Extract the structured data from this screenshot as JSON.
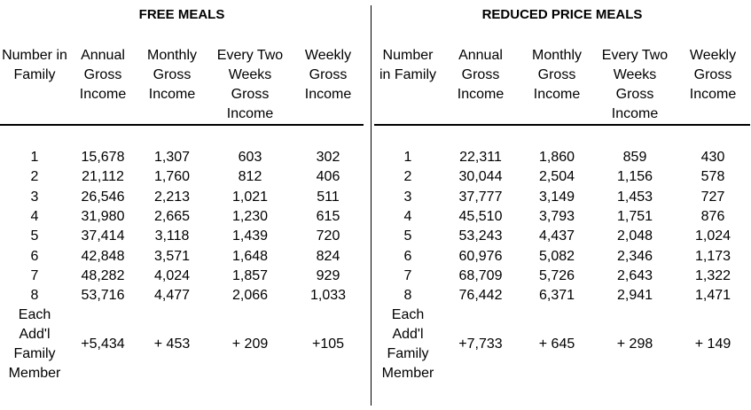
{
  "sections": [
    {
      "title": "FREE MEALS",
      "headers": [
        "Number in Family",
        "Annual Gross Income",
        "Monthly Gross Income",
        "Every Two Weeks Gross Income",
        "Weekly Gross Income"
      ],
      "rows": [
        [
          "1",
          "15,678",
          "1,307",
          "603",
          "302"
        ],
        [
          "2",
          "21,112",
          "1,760",
          "812",
          "406"
        ],
        [
          "3",
          "26,546",
          "2,213",
          "1,021",
          "511"
        ],
        [
          "4",
          "31,980",
          "2,665",
          "1,230",
          "615"
        ],
        [
          "5",
          "37,414",
          "3,118",
          "1,439",
          "720"
        ],
        [
          "6",
          "42,848",
          "3,571",
          "1,648",
          "824"
        ],
        [
          "7",
          "48,282",
          "4,024",
          "1,857",
          "929"
        ],
        [
          "8",
          "53,716",
          "4,477",
          "2,066",
          "1,033"
        ],
        [
          "Each Add'l Family Member",
          "+5,434",
          "+ 453",
          "+ 209",
          "+105"
        ]
      ]
    },
    {
      "title": "REDUCED PRICE MEALS",
      "headers": [
        "Number in Family",
        "Annual Gross Income",
        "Monthly Gross Income",
        "Every Two Weeks Gross Income",
        "Weekly Gross Income"
      ],
      "rows": [
        [
          "1",
          "22,311",
          "1,860",
          "859",
          "430"
        ],
        [
          "2",
          "30,044",
          "2,504",
          "1,156",
          "578"
        ],
        [
          "3",
          "37,777",
          "3,149",
          "1,453",
          "727"
        ],
        [
          "4",
          "45,510",
          "3,793",
          "1,751",
          "876"
        ],
        [
          "5",
          "53,243",
          "4,437",
          "2,048",
          "1,024"
        ],
        [
          "6",
          "60,976",
          "5,082",
          "2,346",
          "1,173"
        ],
        [
          "7",
          "68,709",
          "5,726",
          "2,643",
          "1,322"
        ],
        [
          "8",
          "76,442",
          "6,371",
          "2,941",
          "1,471"
        ],
        [
          "Each Add'l Family Member",
          "+7,733",
          "+ 645",
          "+ 298",
          "+ 149"
        ]
      ]
    }
  ]
}
